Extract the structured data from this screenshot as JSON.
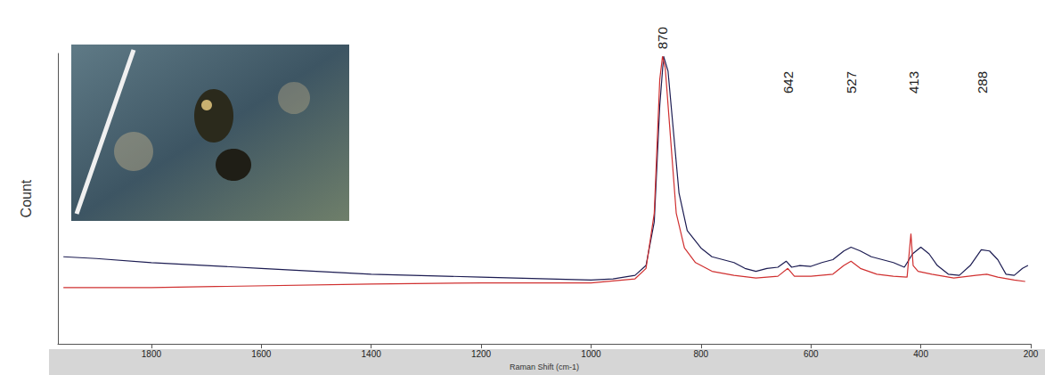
{
  "chart_data": {
    "type": "line",
    "x_label": "Raman Shift (cm-1)",
    "y_label": "Count",
    "xlim": [
      1970,
      200
    ],
    "xticks": [
      1800,
      1600,
      1400,
      1200,
      1000,
      800,
      600,
      400,
      200
    ],
    "ylim": [
      0,
      100
    ],
    "tick_labels": "x",
    "grid": false,
    "series": [
      {
        "color": "#1c1c52",
        "x": [
          1960,
          1900,
          1800,
          1600,
          1400,
          1200,
          1000,
          960,
          920,
          900,
          885,
          875,
          868,
          860,
          850,
          840,
          825,
          800,
          780,
          760,
          740,
          720,
          700,
          680,
          660,
          645,
          635,
          620,
          600,
          580,
          560,
          540,
          527,
          510,
          490,
          470,
          450,
          430,
          415,
          400,
          385,
          370,
          350,
          330,
          310,
          290,
          275,
          260,
          245,
          230,
          215,
          205
        ],
        "values": [
          30,
          29.4,
          28,
          26,
          24,
          23,
          22,
          22.4,
          23.6,
          27,
          42,
          82,
          99,
          94,
          73,
          52,
          39,
          33,
          30,
          29,
          28,
          26,
          25,
          26,
          26.4,
          28.5,
          26.4,
          27,
          26.7,
          28,
          29,
          32,
          33.3,
          32,
          30,
          29,
          28,
          26.4,
          31,
          33.3,
          31,
          27,
          24,
          23.6,
          27,
          32.4,
          32,
          29,
          24,
          23.6,
          26,
          27
        ]
      },
      {
        "color": "#d03030",
        "x": [
          1960,
          1800,
          1400,
          1200,
          1000,
          920,
          900,
          885,
          875,
          870,
          865,
          855,
          845,
          830,
          810,
          780,
          740,
          700,
          660,
          642,
          630,
          600,
          560,
          540,
          527,
          510,
          480,
          450,
          425,
          418,
          414,
          405,
          380,
          340,
          300,
          280,
          260,
          230,
          210
        ],
        "values": [
          19.4,
          19.4,
          20.6,
          21,
          21,
          22.4,
          26,
          45,
          91,
          99,
          95,
          70,
          45,
          33,
          28,
          25,
          23.6,
          22.7,
          23.3,
          26,
          23.3,
          23.3,
          24,
          27,
          28.5,
          26,
          24,
          23.3,
          23,
          38,
          27,
          25,
          24,
          22.7,
          23.6,
          24,
          23,
          22,
          21.5
        ]
      }
    ],
    "annotations": [
      {
        "text": "870",
        "x": 870
      },
      {
        "text": "642",
        "x": 642
      },
      {
        "text": "527",
        "x": 527
      },
      {
        "text": "413",
        "x": 413
      },
      {
        "text": "288",
        "x": 288
      }
    ]
  }
}
